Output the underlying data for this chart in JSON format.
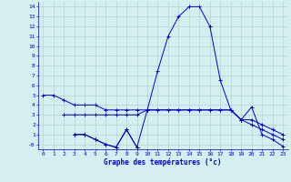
{
  "title": "Graphe des températures (°c)",
  "x_labels": [
    "0",
    "1",
    "2",
    "3",
    "4",
    "5",
    "6",
    "7",
    "8",
    "9",
    "10",
    "11",
    "12",
    "13",
    "14",
    "15",
    "16",
    "17",
    "18",
    "19",
    "20",
    "21",
    "22",
    "23"
  ],
  "x_values": [
    0,
    1,
    2,
    3,
    4,
    5,
    6,
    7,
    8,
    9,
    10,
    11,
    12,
    13,
    14,
    15,
    16,
    17,
    18,
    19,
    20,
    21,
    22,
    23
  ],
  "line1_x": [
    0,
    1,
    2,
    3,
    4,
    5,
    6,
    7,
    8,
    9,
    10,
    11,
    12,
    13,
    14,
    15,
    16,
    17,
    18,
    19,
    20,
    21,
    22,
    23
  ],
  "line1_y": [
    5.0,
    5.0,
    4.5,
    4.0,
    4.0,
    4.0,
    3.5,
    3.5,
    3.5,
    3.5,
    3.5,
    3.5,
    3.5,
    3.5,
    3.5,
    3.5,
    3.5,
    3.5,
    3.5,
    2.5,
    2.5,
    2.0,
    1.5,
    1.0
  ],
  "line2_x": [
    2,
    3,
    4,
    5,
    6,
    7,
    8,
    9,
    10,
    11,
    12,
    13,
    14,
    15,
    16,
    17,
    18,
    19,
    20,
    21,
    22,
    23
  ],
  "line2_y": [
    3.0,
    3.0,
    3.0,
    3.0,
    3.0,
    3.0,
    3.0,
    3.0,
    3.5,
    3.5,
    3.5,
    3.5,
    3.5,
    3.5,
    3.5,
    3.5,
    3.5,
    2.5,
    2.0,
    1.5,
    1.0,
    0.5
  ],
  "line3_x": [
    3,
    4,
    5,
    6,
    7,
    8,
    9,
    10,
    11,
    12,
    13,
    14,
    15,
    16,
    17,
    18,
    19,
    20,
    21,
    22,
    23
  ],
  "line3_y": [
    1.0,
    1.0,
    0.5,
    0.0,
    -0.3,
    1.5,
    -0.3,
    3.5,
    7.5,
    11.0,
    13.0,
    14.0,
    14.0,
    12.0,
    6.5,
    3.5,
    2.5,
    3.8,
    1.0,
    0.5,
    -0.2
  ],
  "line4_x": [
    3,
    4,
    5,
    6,
    7,
    8,
    9
  ],
  "line4_y": [
    1.0,
    1.0,
    0.5,
    0.0,
    -0.3,
    1.5,
    -0.3
  ],
  "background_color": "#d5eef0",
  "grid_color": "#aacccc",
  "line_color": "#0000cc",
  "title_color": "#0000cc",
  "tick_color": "#0000cc",
  "ylim": [
    -0.5,
    14.5
  ],
  "xlim": [
    -0.5,
    23.5
  ],
  "yticks": [
    0,
    1,
    2,
    3,
    4,
    5,
    6,
    7,
    8,
    9,
    10,
    11,
    12,
    13,
    14
  ],
  "ytick_labels": [
    "-0",
    "1",
    "2",
    "3",
    "4",
    "5",
    "6",
    "7",
    "8",
    "9",
    "10",
    "11",
    "12",
    "13",
    "14"
  ]
}
